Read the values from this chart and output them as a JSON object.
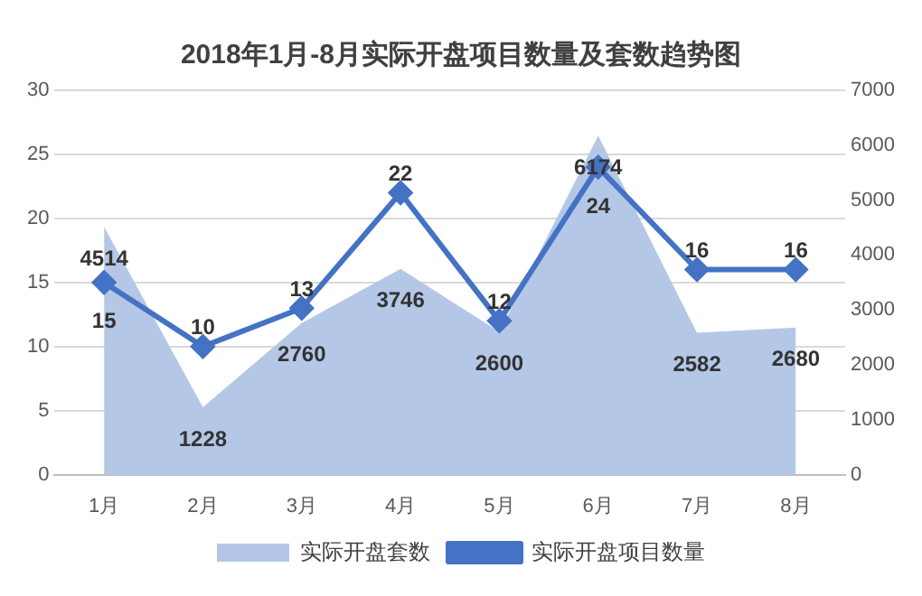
{
  "chart_data": {
    "type": "line",
    "title": "2018年1月-8月实际开盘项目数量及套数趋势图",
    "categories": [
      "1月",
      "2月",
      "3月",
      "4月",
      "5月",
      "6月",
      "7月",
      "8月"
    ],
    "series": [
      {
        "name": "实际开盘套数",
        "type": "area",
        "axis": "y2",
        "color": "#b4c7e7",
        "values": [
          4514,
          1228,
          2760,
          3746,
          2600,
          6174,
          2582,
          2680
        ]
      },
      {
        "name": "实际开盘项目数量",
        "color": "#4472c4",
        "marker": "diamond",
        "values": [
          15,
          10,
          13,
          22,
          12,
          24,
          16,
          16
        ]
      }
    ],
    "ylim": [
      0,
      30
    ],
    "yticks": [
      0,
      5,
      10,
      15,
      20,
      25,
      30
    ],
    "y2lim": [
      0,
      7000
    ],
    "y2ticks": [
      0,
      1000,
      2000,
      3000,
      4000,
      5000,
      6000,
      7000
    ],
    "grid": "y",
    "legend": "bottom",
    "data_labels": true
  }
}
